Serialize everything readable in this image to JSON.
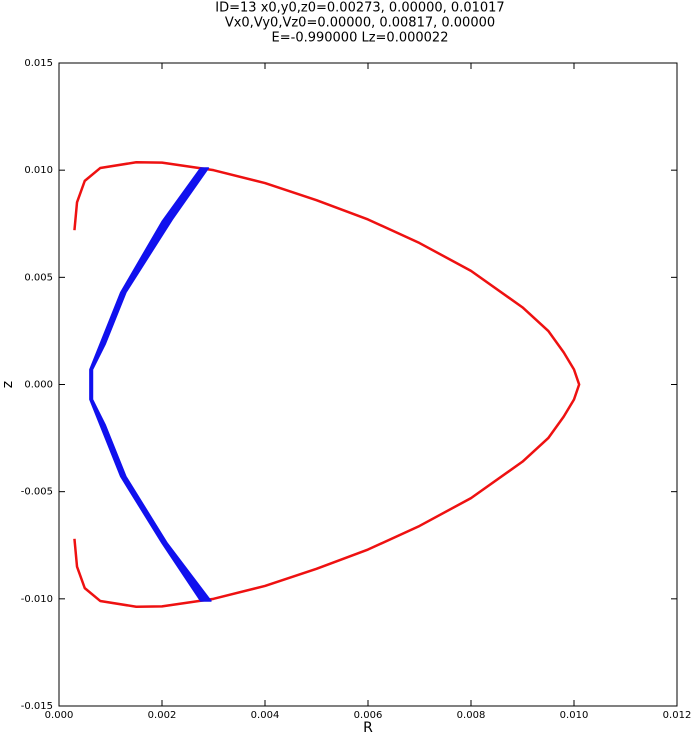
{
  "chart_data": {
    "type": "line",
    "title": [
      "ID=13      x0,y0,z0=0.00273, 0.00000, 0.01017",
      "Vx0,Vy0,Vz0=0.00000, 0.00817, 0.00000",
      "E=-0.990000    Lz=0.000022"
    ],
    "x_label": "R",
    "y_label": "z",
    "xlim": [
      0,
      0.012
    ],
    "xticks": [
      {
        "value": 0,
        "label": "0.000"
      },
      {
        "value": 0.002,
        "label": "0.002"
      },
      {
        "value": 0.004,
        "label": "0.004"
      },
      {
        "value": 0.006,
        "label": "0.006"
      },
      {
        "value": 0.008,
        "label": "0.008"
      },
      {
        "value": 0.01,
        "label": "0.010"
      },
      {
        "value": 0.012,
        "label": "0.012"
      }
    ],
    "ylim": [
      -0.015,
      0.015
    ],
    "yticks": [
      {
        "value": -0.015,
        "label": "-0.015"
      },
      {
        "value": -0.01,
        "label": "-0.010"
      },
      {
        "value": -0.005,
        "label": "-0.005"
      },
      {
        "value": 0,
        "label": "0.000"
      },
      {
        "value": 0.005,
        "label": "0.005"
      },
      {
        "value": 0.01,
        "label": "0.010"
      },
      {
        "value": 0.015,
        "label": "0.015"
      }
    ],
    "series": [
      {
        "color": "#ee1111",
        "fill": false,
        "x": [
          0.0003,
          0.00035,
          0.0005,
          0.0008,
          0.0015,
          0.002,
          0.003,
          0.004,
          0.005,
          0.006,
          0.007,
          0.008,
          0.009,
          0.0095,
          0.0098,
          0.01,
          0.0101,
          0.01,
          0.0098,
          0.0095,
          0.009,
          0.008,
          0.007,
          0.006,
          0.005,
          0.004,
          0.003,
          0.002,
          0.0015,
          0.0008,
          0.0005,
          0.00035,
          0.0003
        ],
        "y": [
          0.0072,
          0.0085,
          0.0095,
          0.0101,
          0.01037,
          0.01035,
          0.01,
          0.0094,
          0.0086,
          0.0077,
          0.0066,
          0.0053,
          0.0036,
          0.0025,
          0.0015,
          0.0007,
          0,
          -0.0007,
          -0.0015,
          -0.0025,
          -0.0036,
          -0.0053,
          -0.0066,
          -0.0077,
          -0.0086,
          -0.0094,
          -0.01,
          -0.01035,
          -0.01037,
          -0.0101,
          -0.0095,
          -0.0085,
          -0.0072
        ]
      },
      {
        "color": "#1111ee",
        "fill": true,
        "x": [
          0.00275,
          0.002,
          0.0012,
          0.0008,
          0.0006,
          0.0006,
          0.0008,
          0.0012,
          0.002,
          0.00275,
          0.00295,
          0.0021,
          0.0013,
          0.0009,
          0.00065,
          0.00065,
          0.0009,
          0.0013,
          0.0022,
          0.0029
        ],
        "y": [
          0.0101,
          0.0076,
          0.0043,
          0.0019,
          0.0007,
          -0.0007,
          -0.0019,
          -0.0043,
          -0.0074,
          -0.0101,
          -0.0101,
          -0.0074,
          -0.0043,
          -0.0019,
          -0.0007,
          0.0007,
          0.0019,
          0.0043,
          0.0077,
          0.0101
        ]
      }
    ]
  }
}
